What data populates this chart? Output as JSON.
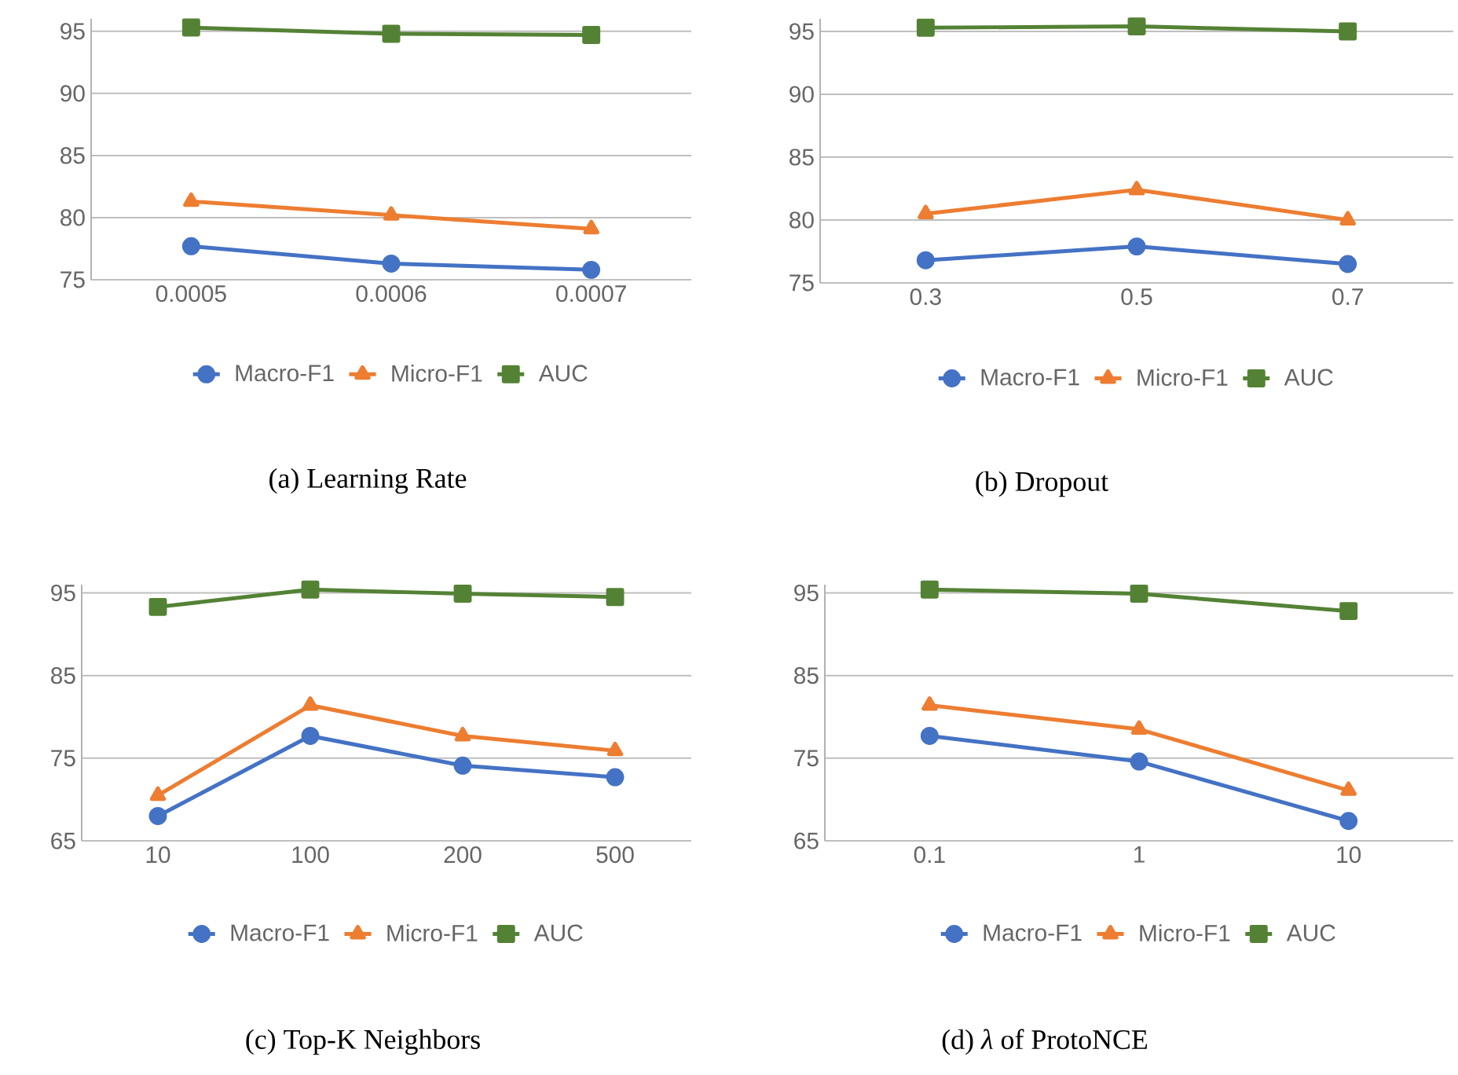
{
  "chart_data": [
    {
      "type": "line",
      "title": "(a)  Learning Rate",
      "categories": [
        "0.0005",
        "0.0006",
        "0.0007"
      ],
      "ylim": [
        75,
        96
      ],
      "yticks": [
        75,
        80,
        85,
        90,
        95
      ],
      "grid": "y",
      "legend": "bottom",
      "series": [
        {
          "name": "Macro-F1",
          "color": "#4472c4",
          "marker": "circle",
          "values": [
            77.7,
            76.3,
            75.8
          ]
        },
        {
          "name": "Micro-F1",
          "color": "#ed7d31",
          "marker": "triangle",
          "values": [
            81.3,
            80.2,
            79.1
          ]
        },
        {
          "name": "AUC",
          "color": "#548235",
          "marker": "square",
          "values": [
            95.3,
            94.8,
            94.7
          ]
        }
      ]
    },
    {
      "type": "line",
      "title": "(b)  Dropout",
      "categories": [
        "0.3",
        "0.5",
        "0.7"
      ],
      "ylim": [
        75,
        96
      ],
      "yticks": [
        75,
        80,
        85,
        90,
        95
      ],
      "grid": "y",
      "legend": "bottom",
      "series": [
        {
          "name": "Macro-F1",
          "color": "#4472c4",
          "marker": "circle",
          "values": [
            76.8,
            77.9,
            76.5
          ]
        },
        {
          "name": "Micro-F1",
          "color": "#ed7d31",
          "marker": "triangle",
          "values": [
            80.5,
            82.4,
            80.0
          ]
        },
        {
          "name": "AUC",
          "color": "#548235",
          "marker": "square",
          "values": [
            95.3,
            95.4,
            95.0
          ]
        }
      ]
    },
    {
      "type": "line",
      "title": "(c)  Top-K Neighbors",
      "categories": [
        "10",
        "100",
        "200",
        "500"
      ],
      "ylim": [
        65,
        96
      ],
      "yticks": [
        65,
        75,
        85,
        95
      ],
      "grid": "y",
      "legend": "bottom",
      "series": [
        {
          "name": "Macro-F1",
          "color": "#4472c4",
          "marker": "circle",
          "values": [
            68.0,
            77.7,
            74.1,
            72.7
          ]
        },
        {
          "name": "Micro-F1",
          "color": "#ed7d31",
          "marker": "triangle",
          "values": [
            70.5,
            81.4,
            77.7,
            75.9
          ]
        },
        {
          "name": "AUC",
          "color": "#548235",
          "marker": "square",
          "values": [
            93.3,
            95.4,
            94.9,
            94.5
          ]
        }
      ]
    },
    {
      "type": "line",
      "title": "(d)  *λ* of ProtoNCE",
      "categories": [
        "0.1",
        "1",
        "10"
      ],
      "ylim": [
        65,
        96
      ],
      "yticks": [
        65,
        75,
        85,
        95
      ],
      "grid": "y",
      "legend": "bottom",
      "series": [
        {
          "name": "Macro-F1",
          "color": "#4472c4",
          "marker": "circle",
          "values": [
            77.7,
            74.6,
            67.4
          ]
        },
        {
          "name": "Micro-F1",
          "color": "#ed7d31",
          "marker": "triangle",
          "values": [
            81.4,
            78.5,
            71.1
          ]
        },
        {
          "name": "AUC",
          "color": "#548235",
          "marker": "square",
          "values": [
            95.4,
            94.9,
            92.8
          ]
        }
      ]
    }
  ]
}
